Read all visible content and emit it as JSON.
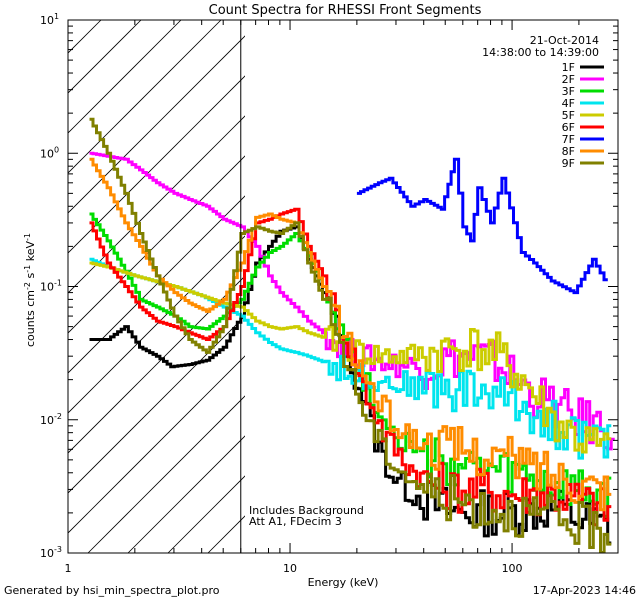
{
  "chart_data": {
    "type": "line",
    "title": "Count Spectra for RHESSI Front Segments",
    "xlabel": "Energy (keV)",
    "ylabel": "counts cm",
    "ylabel_sup1": "-2",
    "ylabel_mid": " s",
    "ylabel_sup2": "-1",
    "ylabel_end": " keV",
    "ylabel_sup3": "-1",
    "xscale": "log",
    "yscale": "log",
    "xlim": [
      1,
      300
    ],
    "ylim": [
      0.001,
      10
    ],
    "x_ticks": [
      {
        "v": 1,
        "label": "1"
      },
      {
        "v": 10,
        "label": "10"
      },
      {
        "v": 100,
        "label": "100"
      }
    ],
    "y_ticks": [
      {
        "v": 0.001,
        "base": "10",
        "exp": "-3"
      },
      {
        "v": 0.01,
        "base": "10",
        "exp": "-2"
      },
      {
        "v": 0.1,
        "base": "10",
        "exp": "-1"
      },
      {
        "v": 1,
        "base": "10",
        "exp": "0"
      },
      {
        "v": 10,
        "base": "10",
        "exp": "1"
      }
    ],
    "shaded_region": {
      "x": [
        1,
        6
      ]
    },
    "date": "21-Oct-2014",
    "time_range": "14:38:00 to 14:39:00",
    "annotations": [
      "Includes Background",
      "Att A1, FDecim 3"
    ],
    "footer_left": "Generated by hsi_min_spectra_plot.pro",
    "footer_right": "17-Apr-2023 14:46",
    "series": [
      {
        "name": "1F",
        "color": "#000000",
        "points": [
          [
            1.25,
            0.04
          ],
          [
            1.5,
            0.04
          ],
          [
            1.8,
            0.05
          ],
          [
            2.1,
            0.035
          ],
          [
            2.5,
            0.03
          ],
          [
            2.9,
            0.025
          ],
          [
            3.5,
            0.026
          ],
          [
            4.2,
            0.028
          ],
          [
            5,
            0.035
          ],
          [
            6,
            0.06
          ],
          [
            7,
            0.15
          ],
          [
            8,
            0.2
          ],
          [
            9,
            0.26
          ],
          [
            10.5,
            0.28
          ],
          [
            12,
            0.16
          ],
          [
            14,
            0.09
          ],
          [
            16,
            0.05
          ],
          [
            18,
            0.03
          ],
          [
            21,
            0.015
          ],
          [
            24,
            0.007
          ],
          [
            28,
            0.004
          ],
          [
            33,
            0.003
          ],
          [
            40,
            0.0025
          ],
          [
            55,
            0.002
          ],
          [
            75,
            0.002
          ],
          [
            100,
            0.002
          ],
          [
            150,
            0.0022
          ],
          [
            200,
            0.0018
          ],
          [
            280,
            0.0015
          ]
        ]
      },
      {
        "name": "2F",
        "color": "#ff00ff",
        "points": [
          [
            1.25,
            1.0
          ],
          [
            1.5,
            0.95
          ],
          [
            1.8,
            0.9
          ],
          [
            2.1,
            0.75
          ],
          [
            2.5,
            0.6
          ],
          [
            3,
            0.5
          ],
          [
            3.5,
            0.45
          ],
          [
            4.2,
            0.4
          ],
          [
            5,
            0.32
          ],
          [
            6,
            0.28
          ],
          [
            7,
            0.2
          ],
          [
            8,
            0.12
          ],
          [
            9,
            0.09
          ],
          [
            10.5,
            0.07
          ],
          [
            12,
            0.055
          ],
          [
            14,
            0.045
          ],
          [
            17,
            0.035
          ],
          [
            20,
            0.03
          ],
          [
            24,
            0.028
          ],
          [
            30,
            0.026
          ],
          [
            40,
            0.025
          ],
          [
            55,
            0.03
          ],
          [
            70,
            0.03
          ],
          [
            90,
            0.025
          ],
          [
            120,
            0.016
          ],
          [
            160,
            0.012
          ],
          [
            200,
            0.01
          ],
          [
            250,
            0.009
          ],
          [
            290,
            0.008
          ]
        ]
      },
      {
        "name": "3F",
        "color": "#00dd00",
        "points": [
          [
            1.25,
            0.35
          ],
          [
            1.5,
            0.22
          ],
          [
            1.8,
            0.13
          ],
          [
            2.1,
            0.08
          ],
          [
            2.5,
            0.07
          ],
          [
            3,
            0.06
          ],
          [
            3.5,
            0.05
          ],
          [
            4.2,
            0.048
          ],
          [
            5,
            0.06
          ],
          [
            6,
            0.08
          ],
          [
            7,
            0.14
          ],
          [
            8,
            0.18
          ],
          [
            9,
            0.2
          ],
          [
            10.5,
            0.25
          ],
          [
            12,
            0.17
          ],
          [
            14,
            0.1
          ],
          [
            16,
            0.06
          ],
          [
            19,
            0.03
          ],
          [
            22,
            0.018
          ],
          [
            26,
            0.01
          ],
          [
            32,
            0.007
          ],
          [
            40,
            0.005
          ],
          [
            55,
            0.0045
          ],
          [
            75,
            0.004
          ],
          [
            100,
            0.0038
          ],
          [
            150,
            0.0032
          ],
          [
            200,
            0.0028
          ],
          [
            280,
            0.0025
          ]
        ]
      },
      {
        "name": "4F",
        "color": "#00e5ee",
        "points": [
          [
            1.25,
            0.16
          ],
          [
            1.5,
            0.14
          ],
          [
            2,
            0.12
          ],
          [
            3,
            0.1
          ],
          [
            4,
            0.085
          ],
          [
            5,
            0.07
          ],
          [
            6,
            0.06
          ],
          [
            7,
            0.045
          ],
          [
            8,
            0.038
          ],
          [
            9,
            0.034
          ],
          [
            10.5,
            0.032
          ],
          [
            12,
            0.03
          ],
          [
            15,
            0.026
          ],
          [
            19,
            0.022
          ],
          [
            25,
            0.02
          ],
          [
            35,
            0.018
          ],
          [
            50,
            0.017
          ],
          [
            70,
            0.017
          ],
          [
            100,
            0.014
          ],
          [
            140,
            0.01
          ],
          [
            200,
            0.0075
          ],
          [
            280,
            0.006
          ]
        ]
      },
      {
        "name": "5F",
        "color": "#cccc00",
        "points": [
          [
            1.25,
            0.15
          ],
          [
            1.5,
            0.14
          ],
          [
            2,
            0.12
          ],
          [
            3,
            0.1
          ],
          [
            4,
            0.085
          ],
          [
            5,
            0.075
          ],
          [
            6,
            0.07
          ],
          [
            7,
            0.055
          ],
          [
            8,
            0.05
          ],
          [
            9,
            0.048
          ],
          [
            10.5,
            0.05
          ],
          [
            12,
            0.045
          ],
          [
            15,
            0.04
          ],
          [
            19,
            0.033
          ],
          [
            25,
            0.03
          ],
          [
            35,
            0.03
          ],
          [
            50,
            0.033
          ],
          [
            65,
            0.035
          ],
          [
            85,
            0.03
          ],
          [
            110,
            0.02
          ],
          [
            150,
            0.01
          ],
          [
            200,
            0.007
          ],
          [
            280,
            0.0055
          ]
        ]
      },
      {
        "name": "6F",
        "color": "#ff0000",
        "points": [
          [
            1.25,
            0.3
          ],
          [
            1.5,
            0.15
          ],
          [
            1.8,
            0.1
          ],
          [
            2.1,
            0.07
          ],
          [
            2.5,
            0.055
          ],
          [
            3,
            0.05
          ],
          [
            3.5,
            0.045
          ],
          [
            4.2,
            0.04
          ],
          [
            5,
            0.05
          ],
          [
            6,
            0.1
          ],
          [
            7,
            0.3
          ],
          [
            8,
            0.32
          ],
          [
            9,
            0.35
          ],
          [
            10.5,
            0.38
          ],
          [
            12,
            0.2
          ],
          [
            14,
            0.12
          ],
          [
            16,
            0.06
          ],
          [
            19,
            0.03
          ],
          [
            22,
            0.015
          ],
          [
            26,
            0.008
          ],
          [
            32,
            0.005
          ],
          [
            40,
            0.0035
          ],
          [
            55,
            0.003
          ],
          [
            75,
            0.003
          ],
          [
            100,
            0.0028
          ],
          [
            150,
            0.0028
          ],
          [
            200,
            0.0025
          ],
          [
            280,
            0.002
          ]
        ]
      },
      {
        "name": "7F",
        "color": "#0000ff",
        "points": [
          [
            20,
            0.5
          ],
          [
            25,
            0.6
          ],
          [
            28,
            0.65
          ],
          [
            35,
            0.4
          ],
          [
            40,
            0.45
          ],
          [
            48,
            0.38
          ],
          [
            55,
            0.9
          ],
          [
            60,
            0.28
          ],
          [
            65,
            0.22
          ],
          [
            70,
            0.55
          ],
          [
            80,
            0.3
          ],
          [
            90,
            0.65
          ],
          [
            110,
            0.18
          ],
          [
            125,
            0.15
          ],
          [
            150,
            0.11
          ],
          [
            190,
            0.09
          ],
          [
            230,
            0.16
          ],
          [
            270,
            0.1
          ]
        ]
      },
      {
        "name": "8F",
        "color": "#ff8c00",
        "points": [
          [
            1.25,
            0.9
          ],
          [
            1.5,
            0.55
          ],
          [
            1.8,
            0.3
          ],
          [
            2.1,
            0.2
          ],
          [
            2.5,
            0.12
          ],
          [
            3,
            0.09
          ],
          [
            3.5,
            0.075
          ],
          [
            4.2,
            0.065
          ],
          [
            5,
            0.08
          ],
          [
            6,
            0.15
          ],
          [
            7,
            0.33
          ],
          [
            8,
            0.35
          ],
          [
            9,
            0.32
          ],
          [
            10.5,
            0.3
          ],
          [
            12,
            0.18
          ],
          [
            14,
            0.1
          ],
          [
            16,
            0.06
          ],
          [
            19,
            0.03
          ],
          [
            22,
            0.02
          ],
          [
            26,
            0.012
          ],
          [
            32,
            0.008
          ],
          [
            40,
            0.0065
          ],
          [
            55,
            0.006
          ],
          [
            75,
            0.0055
          ],
          [
            100,
            0.005
          ],
          [
            150,
            0.004
          ],
          [
            200,
            0.0035
          ],
          [
            280,
            0.003
          ]
        ]
      },
      {
        "name": "9F",
        "color": "#808000",
        "points": [
          [
            1.25,
            1.8
          ],
          [
            1.5,
            1.0
          ],
          [
            1.8,
            0.5
          ],
          [
            2.1,
            0.25
          ],
          [
            2.5,
            0.12
          ],
          [
            3,
            0.06
          ],
          [
            3.5,
            0.04
          ],
          [
            4.2,
            0.032
          ],
          [
            5,
            0.05
          ],
          [
            6,
            0.25
          ],
          [
            7,
            0.28
          ],
          [
            8,
            0.26
          ],
          [
            9,
            0.25
          ],
          [
            10.5,
            0.3
          ],
          [
            12,
            0.15
          ],
          [
            14,
            0.08
          ],
          [
            16,
            0.045
          ],
          [
            19,
            0.02
          ],
          [
            22,
            0.01
          ],
          [
            26,
            0.006
          ],
          [
            32,
            0.004
          ],
          [
            40,
            0.003
          ],
          [
            55,
            0.0025
          ],
          [
            75,
            0.0022
          ],
          [
            100,
            0.002
          ],
          [
            150,
            0.0018
          ],
          [
            200,
            0.0016
          ],
          [
            280,
            0.0014
          ]
        ]
      }
    ]
  }
}
